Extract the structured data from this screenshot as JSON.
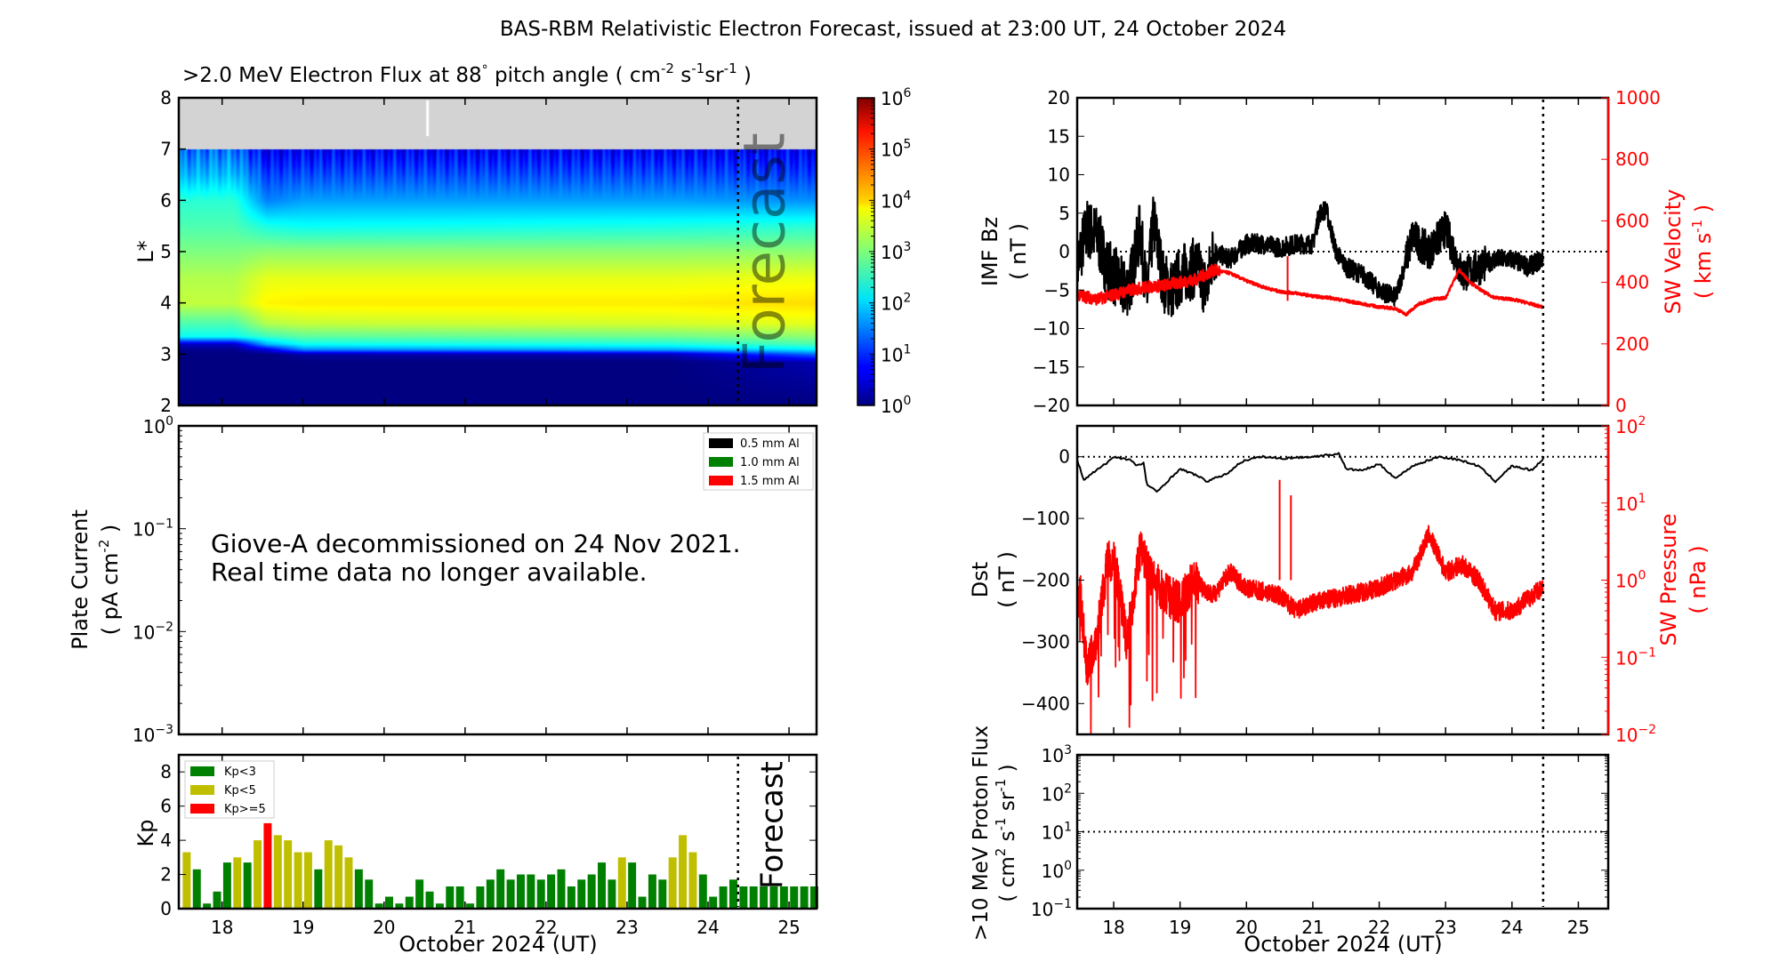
{
  "title": "BAS-RBM Relativistic Electron Forecast, issued at 23:00 UT, 24 October 2024",
  "forecast_label": "Forecast",
  "xlabel": "October 2024 (UT)",
  "colors": {
    "kp_low": "#008000",
    "kp_mid": "#bfbf00",
    "kp_high": "#ff0000",
    "red": "#ff0000",
    "nodata": "#d3d3d3"
  },
  "chart_data": [
    {
      "id": "flux",
      "type": "heatmap",
      "title_main": ">2.0 MeV Electron Flux at 88",
      "title_deg": "°",
      "title_rest": " pitch angle ( cm",
      "title_units": [
        "-2",
        "s",
        "-1",
        "sr",
        "-1"
      ],
      "title_end": " )",
      "ylabel": "L*",
      "ylim": [
        2,
        8
      ],
      "yticks": [
        "2",
        "3",
        "4",
        "5",
        "6",
        "7",
        "8"
      ],
      "xlim": [
        17.465,
        25.34
      ],
      "forecast_start": 24.37,
      "nodata_above_L": 7,
      "colorbar": {
        "scale": "log",
        "range_exp": [
          0,
          6
        ],
        "ticks": [
          "0",
          "1",
          "2",
          "3",
          "4",
          "5",
          "6"
        ],
        "base": "10"
      },
      "grid_L": [
        2,
        2.85,
        3.0,
        3.1,
        3.2,
        3.35,
        3.6,
        4.0,
        4.5,
        5.0,
        5.5,
        6.0,
        6.5,
        7.0
      ],
      "grid_t": [
        17.45,
        18.15,
        18.55,
        19.0,
        23.5,
        25.4
      ],
      "log10_flux": [
        [
          0,
          0,
          0,
          0,
          0,
          0
        ],
        [
          0,
          0,
          0,
          0,
          0,
          0.3
        ],
        [
          0,
          0,
          0,
          0.2,
          0.3,
          1.4
        ],
        [
          0.1,
          0.1,
          0.6,
          1.6,
          1.8,
          2.2
        ],
        [
          0.4,
          0.4,
          1.8,
          2.3,
          2.4,
          2.7
        ],
        [
          2.3,
          2.3,
          2.6,
          2.8,
          2.9,
          3.1
        ],
        [
          2.7,
          2.7,
          3.3,
          3.4,
          3.5,
          3.6
        ],
        [
          3.4,
          3.4,
          3.8,
          3.85,
          3.85,
          3.95
        ],
        [
          3.3,
          3.3,
          3.6,
          3.6,
          3.6,
          3.65
        ],
        [
          3.0,
          3.0,
          3.1,
          3.1,
          3.1,
          3.1
        ],
        [
          2.7,
          2.7,
          2.4,
          2.3,
          2.4,
          2.5
        ],
        [
          2.5,
          2.5,
          1.5,
          1.7,
          1.7,
          1.6
        ],
        [
          1.8,
          1.9,
          1.1,
          1.2,
          1.2,
          1.1
        ],
        [
          1.3,
          1.4,
          0.6,
          0.7,
          0.7,
          0.7
        ]
      ]
    },
    {
      "id": "plate",
      "type": "line",
      "ylabel_line1": "Plate Current",
      "ylabel_line2": "( pA cm",
      "ylabel_sup": "-2",
      "ylabel_end": " )",
      "yscale": "log",
      "yticks_exp": [
        "-3",
        "-2",
        "-1",
        "0"
      ],
      "legend": [
        {
          "label": "0.5 mm Al",
          "color": "#000000"
        },
        {
          "label": "1.0 mm Al",
          "color": "#008000"
        },
        {
          "label": "1.5 mm Al",
          "color": "#ff0000"
        }
      ],
      "message_line1": "Giove-A decommissioned on 24 Nov 2021.",
      "message_line2": "Real time data no longer available."
    },
    {
      "id": "kp",
      "type": "bar",
      "ylabel": "Kp",
      "ylim": [
        0,
        9
      ],
      "yticks": [
        "0",
        "2",
        "4",
        "6",
        "8"
      ],
      "xticks": [
        "18",
        "19",
        "20",
        "21",
        "22",
        "23",
        "24",
        "25"
      ],
      "start": 17.5,
      "bin_days": 0.125,
      "legend": [
        "Kp<3",
        "Kp<5",
        "Kp>=5"
      ],
      "values": [
        3.3,
        2.3,
        0.3,
        1.0,
        2.7,
        3.0,
        2.7,
        4.0,
        5.0,
        4.3,
        4.0,
        3.3,
        3.3,
        2.3,
        4.0,
        3.7,
        3.0,
        2.3,
        1.7,
        0.3,
        0.7,
        0.3,
        0.7,
        1.7,
        1.0,
        0.3,
        1.3,
        1.3,
        0.3,
        1.3,
        1.7,
        2.3,
        1.7,
        2.0,
        2.0,
        1.7,
        2.0,
        2.3,
        1.3,
        1.7,
        2.0,
        2.7,
        1.7,
        3.0,
        2.7,
        0.7,
        2.0,
        1.7,
        3.0,
        4.3,
        3.3,
        2.0,
        0.7,
        1.3,
        1.7,
        1.3,
        1.3,
        1.3,
        1.3,
        1.3,
        1.3,
        1.3,
        1.3
      ]
    },
    {
      "id": "imf",
      "type": "line",
      "ylabel_left": "IMF Bz",
      "ylabel_left_units": "( nT )",
      "ylim_left": [
        -20,
        20
      ],
      "yticks_left": [
        "-20",
        "-15",
        "-10",
        "-5",
        "0",
        "5",
        "10",
        "15",
        "20"
      ],
      "ylabel_right": "SW Velocity",
      "ylabel_right_units": "( km s",
      "ylabel_right_sup": "-1",
      "ylabel_right_end": " )",
      "ylim_right": [
        0,
        1000
      ],
      "yticks_right": [
        "0",
        "200",
        "400",
        "600",
        "800",
        "1000"
      ],
      "xlim": [
        17.45,
        25.45
      ],
      "forecast_start": 24.47,
      "bz": {
        "t": [
          17.45,
          17.5,
          17.6,
          17.75,
          17.9,
          18.0,
          18.15,
          18.25,
          18.4,
          18.5,
          18.6,
          18.75,
          18.9,
          19.0,
          19.25,
          19.4,
          19.5,
          19.75,
          20.0,
          20.25,
          20.5,
          20.75,
          21.0,
          21.1,
          21.2,
          21.35,
          21.5,
          21.75,
          22.0,
          22.25,
          22.5,
          22.75,
          23.0,
          23.25,
          23.5,
          23.75,
          24.0,
          24.25,
          24.45
        ],
        "v": [
          -2,
          0,
          3,
          2,
          -2,
          -3,
          -5,
          -4,
          3,
          -6,
          4,
          -4,
          -5,
          -3,
          -2,
          -5,
          0,
          -1,
          1,
          1,
          0.5,
          1,
          1,
          5,
          5.5,
          0,
          -2,
          -3,
          -5,
          -6,
          2,
          0,
          3,
          -3,
          -2,
          -1,
          -1,
          -2,
          -1
        ]
      },
      "velocity": {
        "t": [
          17.45,
          17.75,
          18.0,
          18.25,
          18.5,
          18.75,
          19.0,
          19.25,
          19.5,
          19.75,
          20.0,
          20.25,
          20.5,
          20.75,
          21.0,
          21.25,
          21.5,
          21.75,
          22.0,
          22.25,
          22.4,
          22.6,
          22.8,
          23.0,
          23.2,
          23.4,
          23.6,
          23.75,
          24.0,
          24.2,
          24.45
        ],
        "v": [
          360,
          345,
          360,
          375,
          385,
          390,
          400,
          410,
          440,
          430,
          405,
          385,
          370,
          365,
          355,
          350,
          340,
          330,
          320,
          315,
          295,
          330,
          345,
          350,
          440,
          395,
          365,
          350,
          345,
          335,
          320
        ]
      }
    },
    {
      "id": "dst",
      "type": "line",
      "ylabel_left": "Dst",
      "ylabel_left_units": "( nT )",
      "ylim_left": [
        -450,
        50
      ],
      "yticks_left": [
        "-400",
        "-300",
        "-200",
        "-100",
        "0"
      ],
      "ylabel_right": "SW Pressure",
      "ylabel_right_units": "( nPa )",
      "yscale_right": "log",
      "yticks_right_exp": [
        "-2",
        "-1",
        "0",
        "1",
        "2"
      ],
      "dst": {
        "t": [
          17.45,
          17.55,
          17.7,
          17.9,
          18.0,
          18.25,
          18.35,
          18.45,
          18.5,
          18.65,
          18.9,
          19.0,
          19.25,
          19.4,
          19.7,
          19.9,
          20.0,
          20.25,
          20.5,
          21.0,
          21.4,
          21.5,
          21.75,
          22.0,
          22.25,
          22.5,
          22.9,
          23.2,
          23.5,
          23.75,
          24.0,
          24.3,
          24.45
        ],
        "v": [
          -5,
          -38,
          -25,
          -10,
          0,
          -5,
          -15,
          -10,
          -45,
          -57,
          -30,
          -20,
          -30,
          -40,
          -28,
          -10,
          -5,
          0,
          -3,
          0,
          5,
          -20,
          -22,
          -12,
          -35,
          -15,
          0,
          -5,
          -15,
          -40,
          -15,
          -22,
          -5
        ]
      },
      "pressure_log10": {
        "t": [
          17.45,
          17.5,
          17.6,
          17.75,
          17.9,
          18.0,
          18.2,
          18.4,
          18.6,
          18.8,
          19.0,
          19.2,
          19.5,
          19.75,
          20.0,
          20.5,
          20.75,
          21.0,
          21.5,
          22.0,
          22.5,
          22.75,
          23.0,
          23.25,
          23.5,
          23.75,
          24.0,
          24.45
        ],
        "v": [
          -0.3,
          -0.2,
          -1.2,
          -0.7,
          0.2,
          0.3,
          -0.8,
          0.4,
          0.0,
          -0.2,
          -0.3,
          0.0,
          -0.2,
          0.1,
          -0.1,
          -0.2,
          -0.4,
          -0.3,
          -0.2,
          -0.1,
          0.1,
          0.6,
          0.1,
          0.2,
          0.0,
          -0.4,
          -0.4,
          -0.1
        ]
      }
    },
    {
      "id": "proton",
      "type": "line",
      "ylabel_line1": ">10 MeV Proton Flux",
      "ylabel_line2": "( cm",
      "ylabel_units": [
        "2",
        "s",
        "-1",
        "sr",
        "-1"
      ],
      "yscale": "log",
      "yticks_exp": [
        "-1",
        "0",
        "1",
        "2",
        "3"
      ],
      "threshold": 10
    }
  ]
}
